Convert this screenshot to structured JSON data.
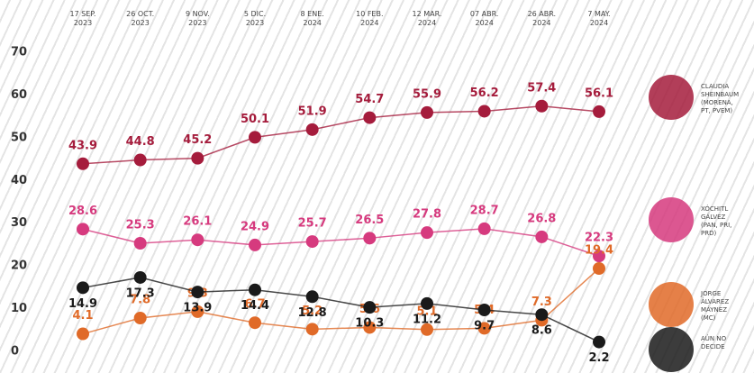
{
  "chart_data": {
    "type": "line",
    "categories": [
      "17 SEP.\n2023",
      "26 OCT.\n2023",
      "9 NOV.\n2023",
      "5 DIC.\n2023",
      "8 ENE.\n2024",
      "10 FEB.\n2024",
      "12 MAR.\n2024",
      "07 ABR.\n2024",
      "26 ABR.\n2024",
      "7 MAY.\n2024"
    ],
    "series": [
      {
        "name": "CLAUDIA\nSHEINBAUM\n(MORENA,\nPT, PVEM)",
        "color": "#a51c3c",
        "values": [
          43.9,
          44.8,
          45.2,
          50.1,
          51.9,
          54.7,
          55.9,
          56.2,
          57.4,
          56.1
        ]
      },
      {
        "name": "XÓCHITL\nGÁLVEZ\n(PAN, PRI,\nPRD)",
        "color": "#d63a7e",
        "values": [
          28.6,
          25.3,
          26.1,
          24.9,
          25.7,
          26.5,
          27.8,
          28.7,
          26.8,
          22.3
        ]
      },
      {
        "name": "JORGE\nÁLVAREZ\nMÁYNEZ\n(MC)",
        "color": "#e06a28",
        "values": [
          4.1,
          7.8,
          9.3,
          6.7,
          5.2,
          5.6,
          5.1,
          5.4,
          7.3,
          19.4
        ]
      },
      {
        "name": "AÚN NO\nDECIDE",
        "color": "#1a1a1a",
        "values": [
          14.9,
          17.3,
          13.9,
          14.4,
          12.8,
          10.3,
          11.2,
          9.7,
          8.6,
          2.2
        ]
      }
    ],
    "ylim": [
      0,
      70
    ],
    "yticks": [
      0,
      10,
      20,
      30,
      40,
      50,
      60,
      70
    ],
    "grid": false
  }
}
